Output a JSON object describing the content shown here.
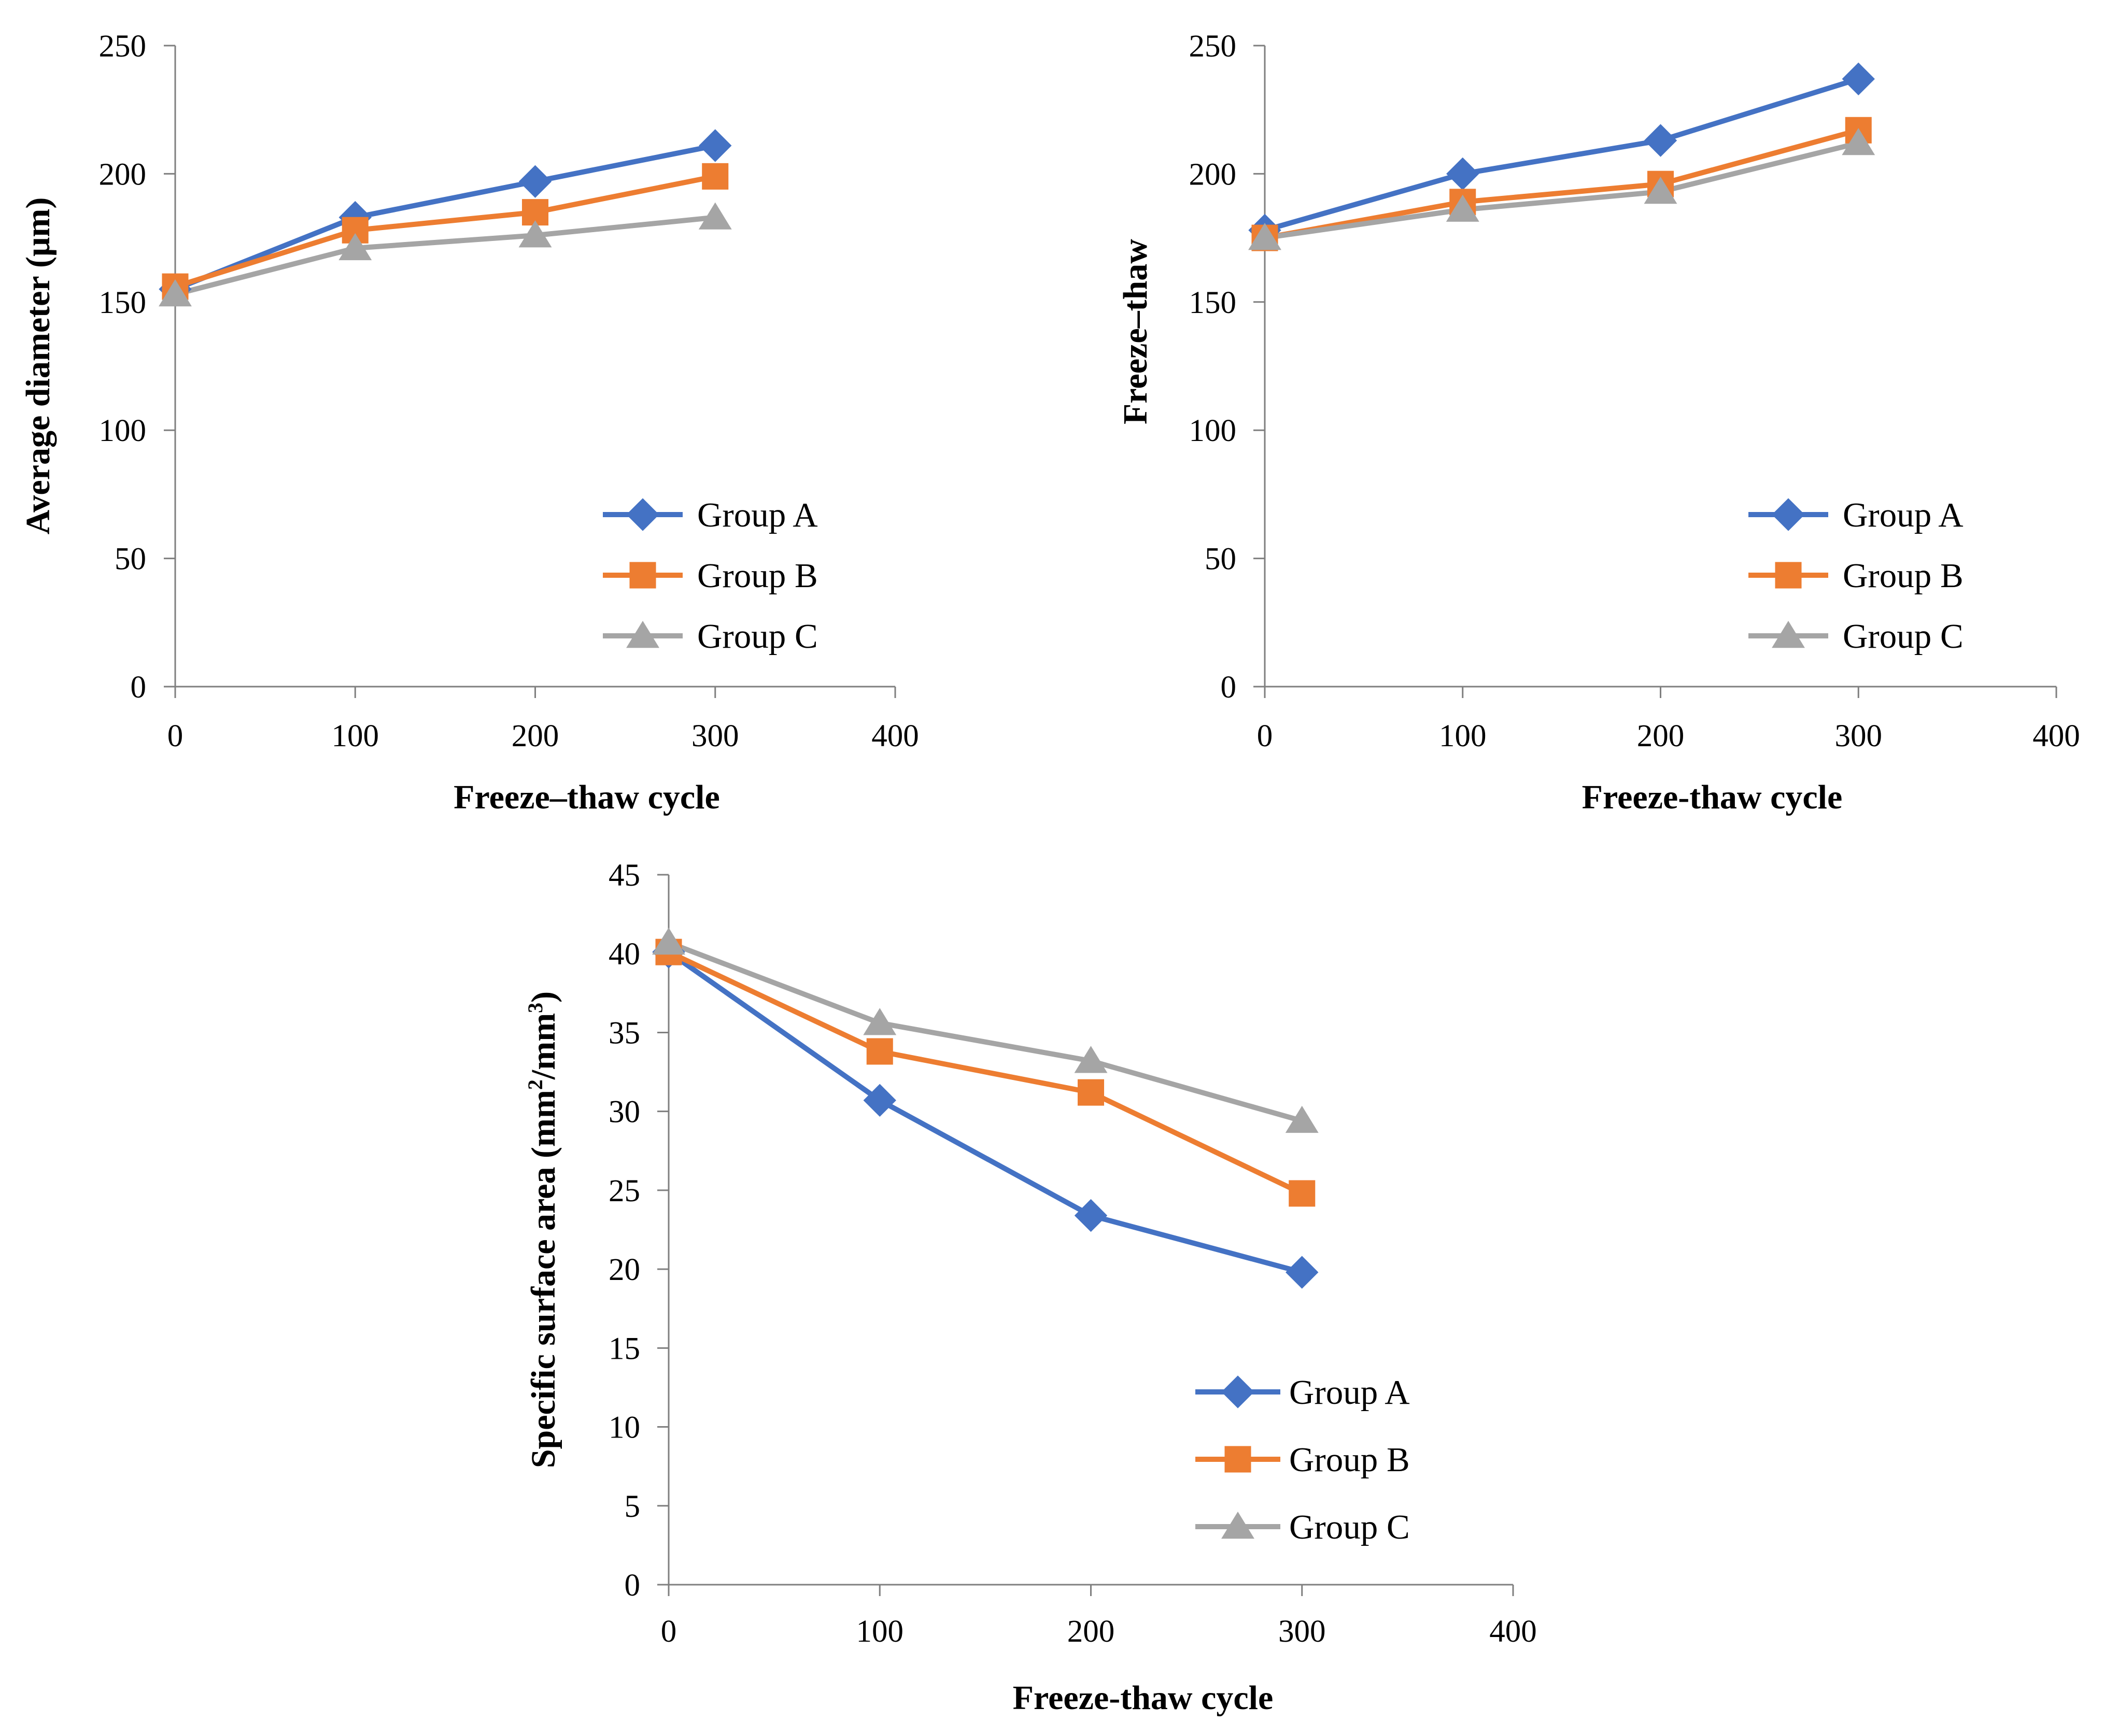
{
  "chart_data": [
    {
      "type": "line",
      "title": "",
      "xlabel": "Freeze–thaw cycle",
      "ylabel": "Average  diameter (μm)",
      "xlim": [
        0,
        400
      ],
      "ylim": [
        0,
        250
      ],
      "xticks": [
        "0",
        "100",
        "200",
        "300",
        "400"
      ],
      "yticks": [
        "0",
        "50",
        "100",
        "150",
        "200",
        "250"
      ],
      "x": [
        0,
        100,
        200,
        300
      ],
      "series": [
        {
          "name": "Group A",
          "marker": "diamond",
          "color": "#4472C4",
          "values": [
            155,
            183,
            197,
            211
          ]
        },
        {
          "name": "Group B",
          "marker": "square",
          "color": "#ED7D31",
          "values": [
            156,
            178,
            185,
            199
          ]
        },
        {
          "name": "Group C",
          "marker": "triangle",
          "color": "#A5A5A5",
          "values": [
            153,
            171,
            176,
            183
          ]
        }
      ],
      "legend": "center-right"
    },
    {
      "type": "line",
      "title": "",
      "xlabel": "Freeze-thaw cycle",
      "ylabel": "Freeze–thaw",
      "xlim": [
        0,
        400
      ],
      "ylim": [
        0,
        250
      ],
      "xticks": [
        "0",
        "100",
        "200",
        "300",
        "400"
      ],
      "yticks": [
        "0",
        "50",
        "100",
        "150",
        "200",
        "250"
      ],
      "x": [
        0,
        100,
        200,
        300
      ],
      "series": [
        {
          "name": "Group A",
          "marker": "diamond",
          "color": "#4472C4",
          "values": [
            178,
            200,
            213,
            237
          ]
        },
        {
          "name": "Group B",
          "marker": "square",
          "color": "#ED7D31",
          "values": [
            175,
            189,
            196,
            217
          ]
        },
        {
          "name": "Group C",
          "marker": "triangle",
          "color": "#A5A5A5",
          "values": [
            175,
            186,
            193,
            212
          ]
        }
      ],
      "legend": "center-right"
    },
    {
      "type": "line",
      "title": "",
      "xlabel": "Freeze-thaw cycle",
      "ylabel_parts": [
        "Specific surface area (mm",
        "2",
        "/mm",
        "3",
        ")"
      ],
      "xlim": [
        0,
        400
      ],
      "ylim": [
        0,
        45
      ],
      "xticks": [
        "0",
        "100",
        "200",
        "300",
        "400"
      ],
      "yticks": [
        "0",
        "5",
        "10",
        "15",
        "20",
        "25",
        "30",
        "35",
        "40",
        "45"
      ],
      "x": [
        0,
        100,
        200,
        300
      ],
      "series": [
        {
          "name": "Group A",
          "marker": "diamond",
          "color": "#4472C4",
          "values": [
            40.1,
            30.7,
            23.4,
            19.8
          ]
        },
        {
          "name": "Group B",
          "marker": "square",
          "color": "#ED7D31",
          "values": [
            40.1,
            33.8,
            31.2,
            24.8
          ]
        },
        {
          "name": "Group C",
          "marker": "triangle",
          "color": "#A5A5A5",
          "values": [
            40.7,
            35.6,
            33.2,
            29.4
          ]
        }
      ],
      "legend": "lower-right"
    }
  ]
}
